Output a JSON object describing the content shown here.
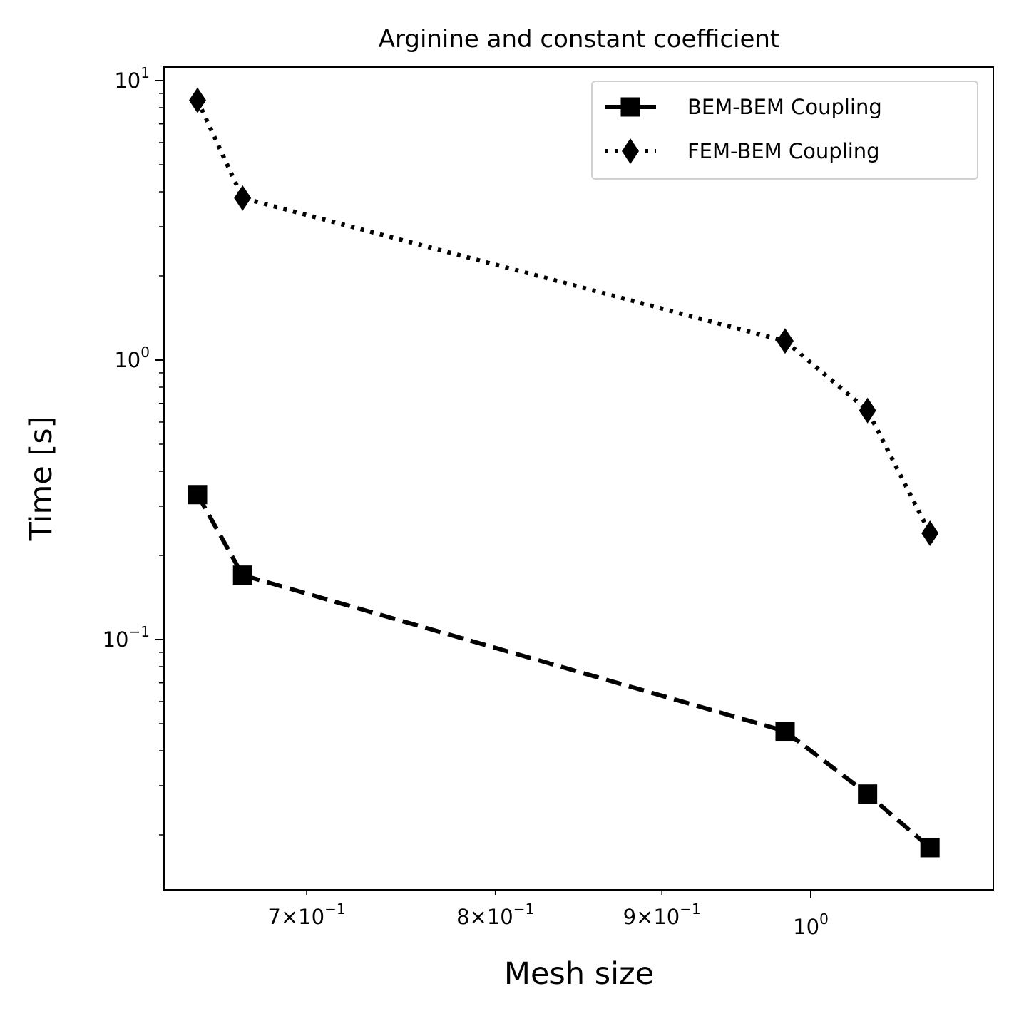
{
  "chart_data": {
    "type": "line",
    "title": "Arginine and constant coefficient",
    "xlabel": "Mesh size",
    "ylabel": "Time [s]",
    "xscale": "log",
    "yscale": "log",
    "xlim": [
      0.64,
      1.07
    ],
    "ylim": [
      0.0165,
      11.0
    ],
    "grid": false,
    "legend_position": "top-right",
    "x": [
      0.648,
      0.669,
      0.982,
      1.041,
      1.088
    ],
    "series": [
      {
        "name": "BEM-BEM Coupling",
        "values": [
          0.33,
          0.17,
          0.047,
          0.028,
          0.018
        ],
        "line_style": "dashed",
        "marker": "square",
        "color": "#000000"
      },
      {
        "name": "FEM-BEM Coupling",
        "values": [
          8.5,
          3.8,
          1.17,
          0.66,
          0.24
        ],
        "line_style": "dotted",
        "marker": "diamond",
        "color": "#000000"
      }
    ],
    "x_ticks": [
      {
        "value": 0.7,
        "mantissa": "7",
        "exponent": "−1"
      },
      {
        "value": 0.8,
        "mantissa": "8",
        "exponent": "−1"
      },
      {
        "value": 0.9,
        "mantissa": "9",
        "exponent": "−1"
      },
      {
        "value": 1.0,
        "mantissa": "",
        "exponent": "0"
      }
    ],
    "y_ticks": [
      {
        "value": 0.1,
        "exponent": "−1"
      },
      {
        "value": 1.0,
        "exponent": "0"
      },
      {
        "value": 10.0,
        "exponent": "1"
      }
    ]
  }
}
